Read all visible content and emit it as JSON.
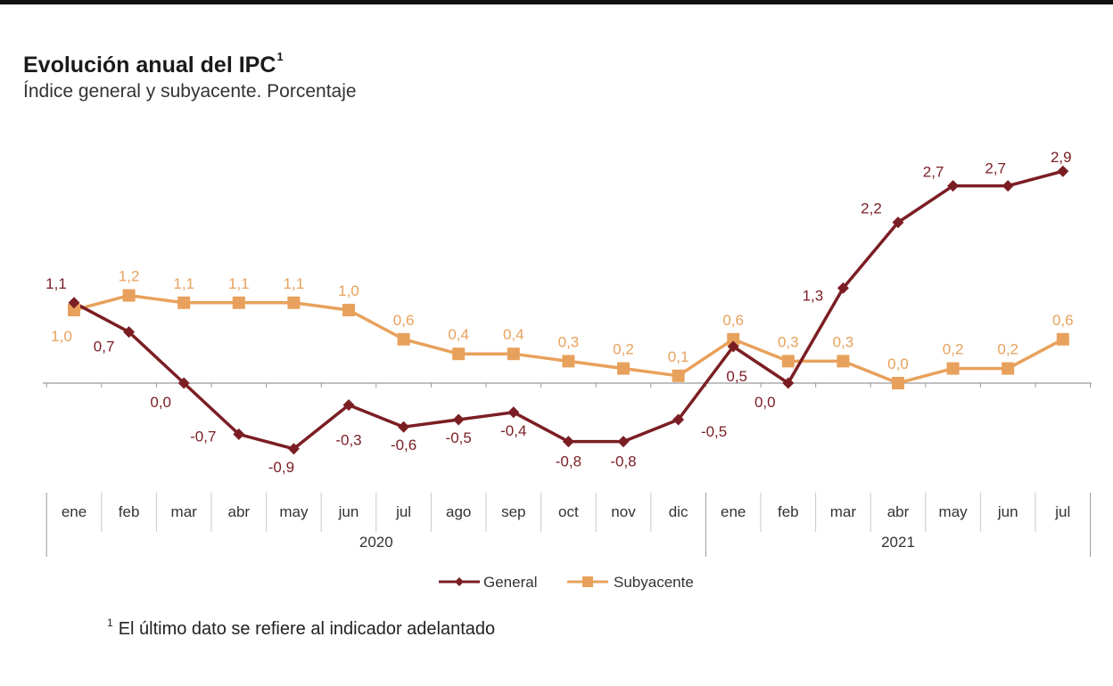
{
  "header": {
    "title": "Evolución anual del IPC",
    "title_note_mark": "1",
    "subtitle": "Índice general y subyacente. Porcentaje"
  },
  "footnote": {
    "mark": "1",
    "text": "El último dato se refiere al indicador adelantado"
  },
  "chart_data": {
    "type": "line",
    "title": "Evolución anual del IPC",
    "subtitle": "Índice general y subyacente. Porcentaje",
    "categories": [
      "ene",
      "feb",
      "mar",
      "abr",
      "may",
      "jun",
      "jul",
      "ago",
      "sep",
      "oct",
      "nov",
      "dic",
      "ene",
      "feb",
      "mar",
      "abr",
      "may",
      "jun",
      "jul"
    ],
    "years": [
      {
        "label": "2020",
        "start": 0,
        "end": 11
      },
      {
        "label": "2021",
        "start": 12,
        "end": 18
      }
    ],
    "series": [
      {
        "name": "General",
        "color": "#7b1e24",
        "marker": "diamond",
        "values": [
          1.1,
          0.7,
          0.0,
          -0.7,
          -0.9,
          -0.3,
          -0.6,
          -0.5,
          -0.4,
          -0.8,
          -0.8,
          -0.5,
          0.5,
          0.0,
          1.3,
          2.2,
          2.7,
          2.7,
          2.9
        ],
        "labels": [
          "1,1",
          "0,7",
          "0,0",
          "-0,7",
          "-0,9",
          "-0,3",
          "-0,6",
          "-0,5",
          "-0,4",
          "-0,8",
          "-0,8",
          "-0,5",
          "0,5",
          "0,0",
          "1,3",
          "2,2",
          "2,7",
          "2,7",
          "2,9"
        ]
      },
      {
        "name": "Subyacente",
        "color": "#e8a15c",
        "marker": "square",
        "values": [
          1.0,
          1.2,
          1.1,
          1.1,
          1.1,
          1.0,
          0.6,
          0.4,
          0.4,
          0.3,
          0.2,
          0.1,
          0.6,
          0.3,
          0.3,
          0.0,
          0.2,
          0.2,
          0.6
        ],
        "labels": [
          "1,0",
          "1,2",
          "1,1",
          "1,1",
          "1,1",
          "1,0",
          "0,6",
          "0,4",
          "0,4",
          "0,3",
          "0,2",
          "0,1",
          "0,6",
          "0,3",
          "0,3",
          "0,0",
          "0,2",
          "0,2",
          "0,6"
        ]
      }
    ],
    "legend": {
      "position": "bottom-center"
    },
    "grid": false
  }
}
